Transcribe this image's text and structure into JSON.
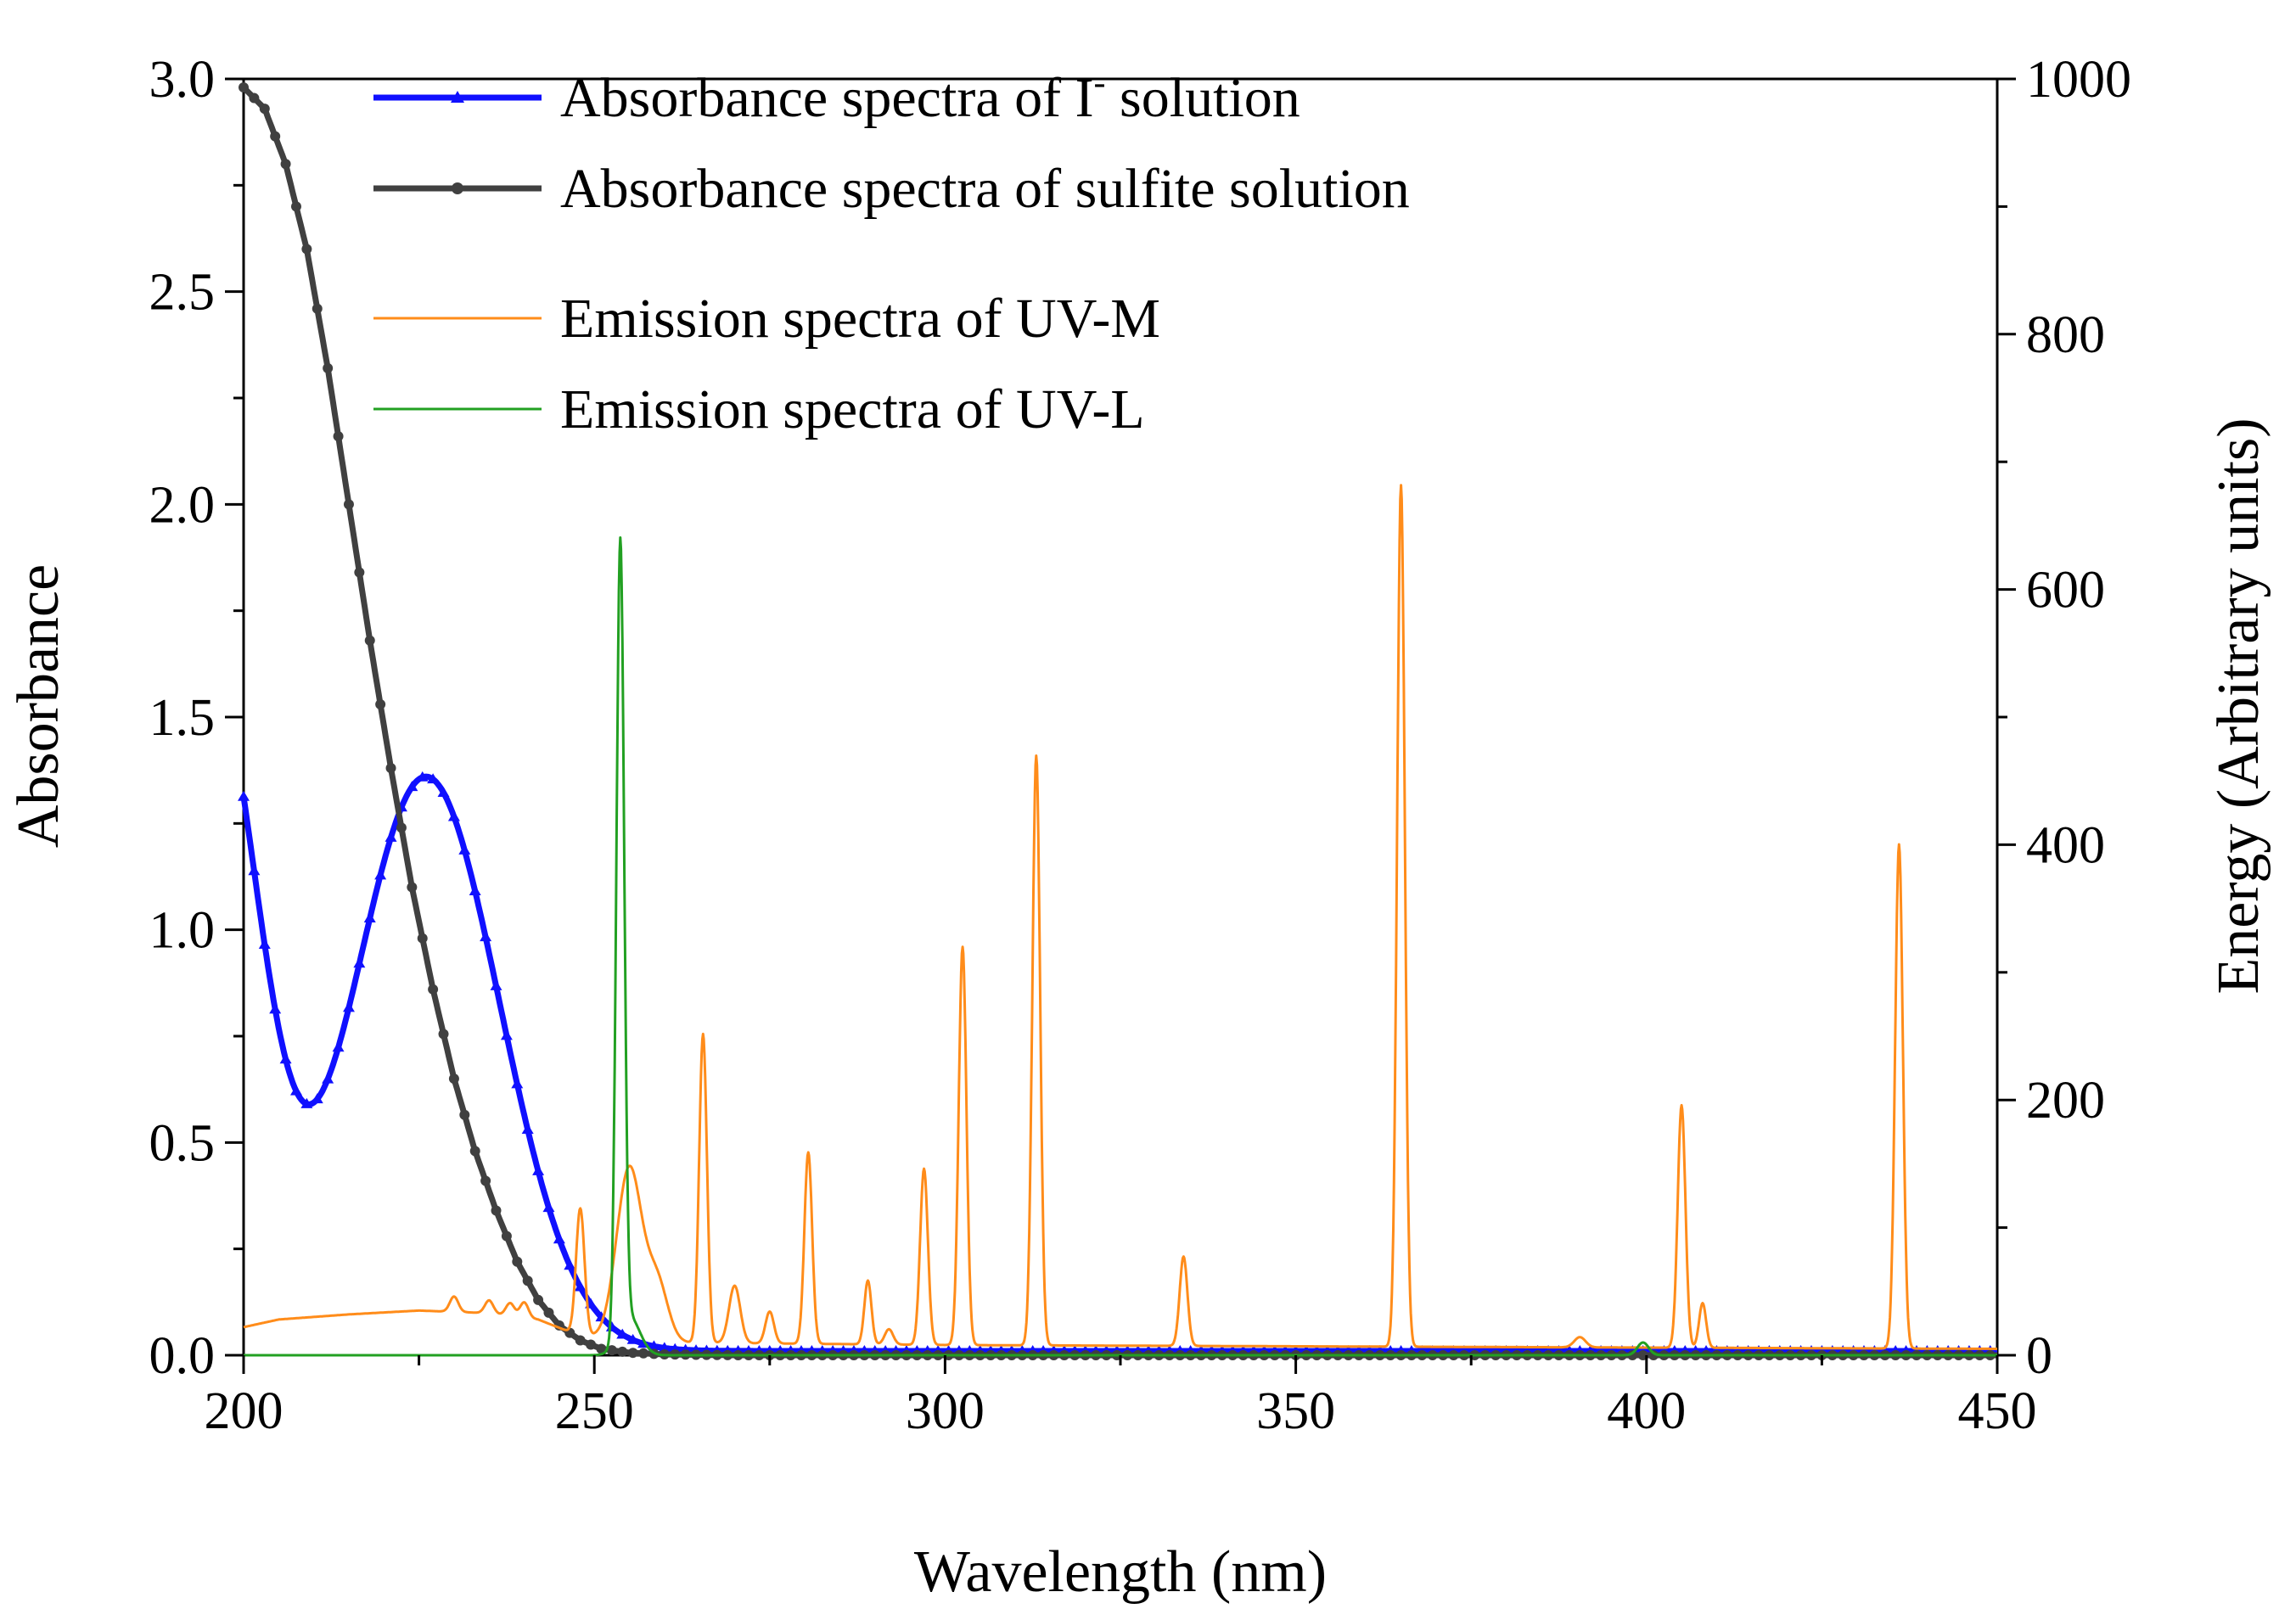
{
  "chart_data": {
    "type": "line",
    "title": "",
    "xlabel": "Wavelength (nm)",
    "ylabel": "Absorbance",
    "y2label": "Energy (Arbitrary units)",
    "xlim": [
      200,
      450
    ],
    "ylim": [
      0,
      3.0
    ],
    "y2lim": [
      0,
      1000
    ],
    "x_ticks": [
      200,
      250,
      300,
      350,
      400,
      450
    ],
    "x_tick_labels": [
      "200",
      "250",
      "300",
      "350",
      "400",
      "450"
    ],
    "y_ticks": [
      0,
      0.5,
      1.0,
      1.5,
      2.0,
      2.5,
      3.0
    ],
    "y_tick_labels": [
      "0.0",
      "0.5",
      "1.0",
      "1.5",
      "2.0",
      "2.5",
      "3.0"
    ],
    "y2_ticks": [
      0,
      200,
      400,
      600,
      800,
      1000
    ],
    "y2_tick_labels": [
      "0",
      "200",
      "400",
      "600",
      "800",
      "1000"
    ],
    "legend_position": "top-left",
    "series": [
      {
        "name": "Absorbance spectra of I⁻ solution",
        "legend_main": "Absorbance spectra of I",
        "legend_sup": "-",
        "legend_tail": " solution",
        "axis": "left",
        "color": "#1010ff",
        "marker": "triangle",
        "kind": "gauss",
        "base": 0.01,
        "peaks": [
          [
            195,
            1.6,
            7
          ],
          [
            226,
            1.35,
            10.5
          ]
        ]
      },
      {
        "name": "Absorbance spectra of sulfite solution",
        "axis": "left",
        "color": "#404040",
        "marker": "circle",
        "kind": "points",
        "points": [
          [
            200,
            2.98
          ],
          [
            203,
            2.93
          ],
          [
            206,
            2.8
          ],
          [
            209,
            2.6
          ],
          [
            212,
            2.32
          ],
          [
            215,
            2.0
          ],
          [
            218,
            1.68
          ],
          [
            221,
            1.38
          ],
          [
            224,
            1.1
          ],
          [
            227,
            0.86
          ],
          [
            230,
            0.65
          ],
          [
            233,
            0.48
          ],
          [
            236,
            0.34
          ],
          [
            239,
            0.22
          ],
          [
            242,
            0.13
          ],
          [
            245,
            0.07
          ],
          [
            248,
            0.035
          ],
          [
            251,
            0.015
          ],
          [
            255,
            0.006
          ],
          [
            260,
            0.002
          ],
          [
            270,
            0.0
          ],
          [
            450,
            0.0
          ]
        ]
      },
      {
        "name": "Emission spectra of UV-M",
        "axis": "right",
        "color": "#ff8c1a",
        "marker": "none",
        "kind": "gauss",
        "base_points": [
          [
            200,
            22
          ],
          [
            205,
            28
          ],
          [
            215,
            32
          ],
          [
            225,
            35
          ],
          [
            235,
            33
          ],
          [
            242,
            28
          ],
          [
            248,
            15
          ],
          [
            260,
            10
          ],
          [
            300,
            8
          ],
          [
            450,
            5
          ]
        ],
        "peaks": [
          [
            230,
            12,
            0.6
          ],
          [
            235,
            10,
            0.6
          ],
          [
            238,
            10,
            0.6
          ],
          [
            240,
            12,
            0.6
          ],
          [
            248,
            100,
            0.6
          ],
          [
            255,
            135,
            1.8
          ],
          [
            259,
            45,
            1.5
          ],
          [
            265.5,
            242,
            0.55
          ],
          [
            270,
            45,
            0.8
          ],
          [
            275,
            25,
            0.6
          ],
          [
            280.5,
            150,
            0.55
          ],
          [
            289,
            50,
            0.5
          ],
          [
            292,
            12,
            0.6
          ],
          [
            297,
            138,
            0.55
          ],
          [
            302.5,
            312,
            0.55
          ],
          [
            313,
            462,
            0.55
          ],
          [
            334,
            70,
            0.55
          ],
          [
            365,
            675,
            0.55
          ],
          [
            390.5,
            8,
            0.8
          ],
          [
            405,
            190,
            0.55
          ],
          [
            408,
            35,
            0.5
          ],
          [
            436,
            395,
            0.55
          ]
        ]
      },
      {
        "name": "Emission spectra of UV-L",
        "axis": "right",
        "color": "#22a022",
        "marker": "none",
        "kind": "gauss",
        "base": 0,
        "peaks": [
          [
            253.7,
            620,
            0.55
          ],
          [
            255,
            30,
            1.5
          ],
          [
            399.5,
            10,
            0.8
          ]
        ]
      }
    ]
  }
}
